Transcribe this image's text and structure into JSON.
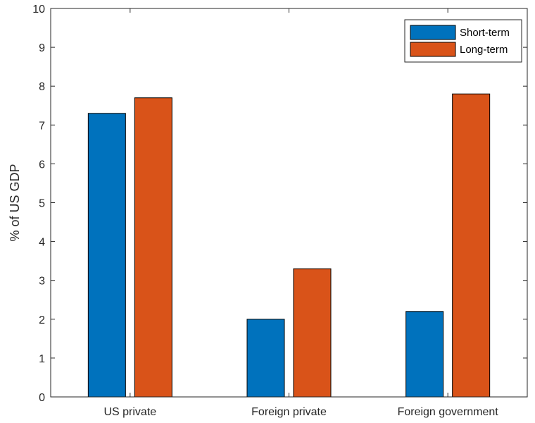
{
  "chart_data": {
    "type": "bar",
    "categories": [
      "US private",
      "Foreign private",
      "Foreign government"
    ],
    "series": [
      {
        "name": "Short-term",
        "values": [
          7.3,
          2.0,
          2.2
        ],
        "color": "#0072BD"
      },
      {
        "name": "Long-term",
        "values": [
          7.7,
          3.3,
          7.8
        ],
        "color": "#D95319"
      }
    ],
    "ylabel": "% of US GDP",
    "xlabel": "",
    "title": "",
    "ylim": [
      0,
      10
    ],
    "yticks": [
      0,
      1,
      2,
      3,
      4,
      5,
      6,
      7,
      8,
      9,
      10
    ],
    "grid": false,
    "legend_position": "top-right"
  }
}
